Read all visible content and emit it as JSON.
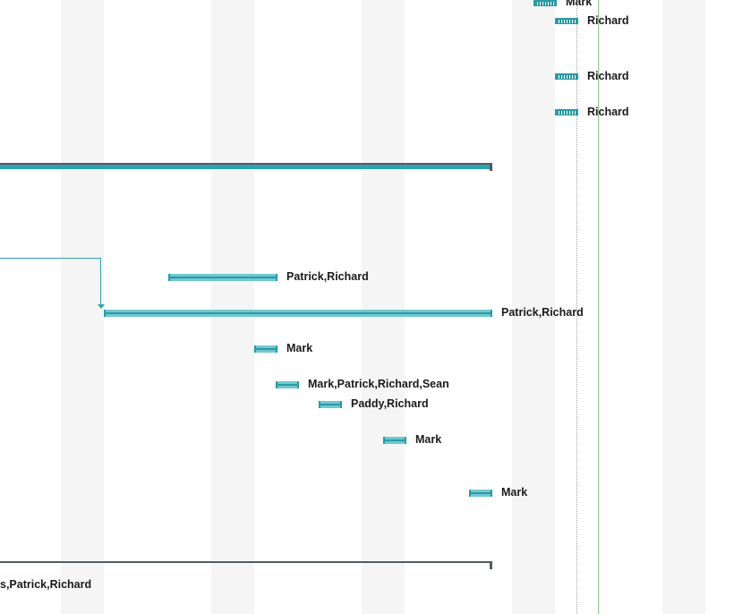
{
  "gantt": {
    "colors": {
      "task_bar": "#70c8cf",
      "task_bar_border": "#2b9aa3",
      "summary_bar": "#2fa3ad",
      "summary_outline": "#555b60",
      "today_line": "#8fc98f",
      "column_band": "#f5f5f5"
    },
    "resource_labels": {
      "row_mark_top": "Mark",
      "row_richard_1": "Richard",
      "row_richard_2": "Richard",
      "row_richard_3": "Richard",
      "row_patrick_richard_1": "Patrick,Richard",
      "row_patrick_richard_2": "Patrick,Richard",
      "row_mark_1": "Mark",
      "row_team": "Mark,Patrick,Richard,Sean",
      "row_paddy_richard": "Paddy,Richard",
      "row_mark_2": "Mark",
      "row_mark_3": "Mark",
      "row_bottom": "s,Patrick,Richard"
    }
  }
}
